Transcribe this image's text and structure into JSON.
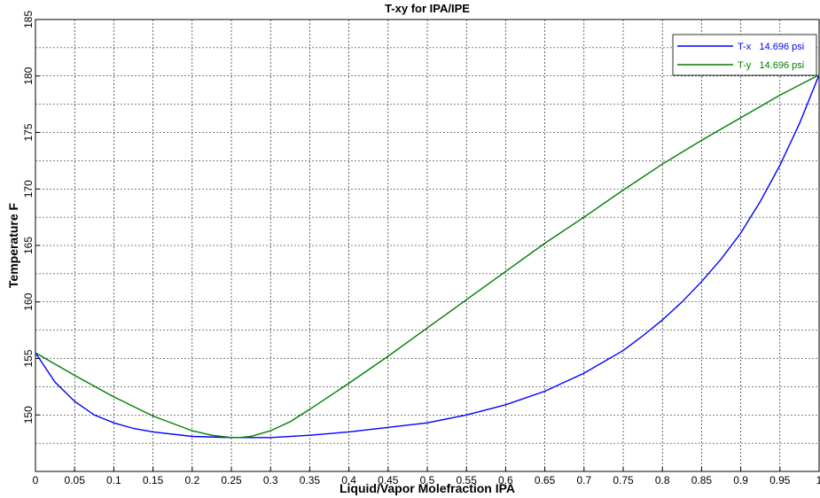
{
  "chart_data": {
    "type": "line",
    "title": "T-xy for IPA/IPE",
    "xlabel": "Liquid/Vapor Molefraction IPA",
    "ylabel": "Temperature  F",
    "xlim": [
      0,
      1
    ],
    "ylim": [
      145,
      185
    ],
    "grid": true,
    "legend_position": "top-right",
    "x_ticks": [
      "0",
      "0.05",
      "0.1",
      "0.15",
      "0.2",
      "0.25",
      "0.3",
      "0.35",
      "0.4",
      "0.45",
      "0.5",
      "0.55",
      "0.6",
      "0.65",
      "0.7",
      "0.75",
      "0.8",
      "0.85",
      "0.9",
      "0.95",
      "1"
    ],
    "y_ticks": [
      "150",
      "155",
      "160",
      "165",
      "170",
      "175",
      "180",
      "185"
    ],
    "series": [
      {
        "name": "T-x   14.696 psi",
        "color": "#0000ff",
        "x": [
          0,
          0.025,
          0.05,
          0.075,
          0.1,
          0.125,
          0.15,
          0.2,
          0.25,
          0.3,
          0.35,
          0.4,
          0.45,
          0.5,
          0.55,
          0.6,
          0.65,
          0.7,
          0.75,
          0.775,
          0.8,
          0.825,
          0.85,
          0.875,
          0.9,
          0.925,
          0.95,
          0.975,
          1.0
        ],
        "y": [
          155.5,
          152.9,
          151.2,
          150.0,
          149.3,
          148.8,
          148.5,
          148.1,
          148.0,
          148.0,
          148.2,
          148.5,
          148.9,
          149.3,
          150.0,
          150.9,
          152.1,
          153.7,
          155.7,
          157.0,
          158.4,
          160.0,
          161.8,
          163.8,
          166.1,
          168.9,
          172.1,
          175.8,
          180.1
        ]
      },
      {
        "name": "T-y   14.696 psi",
        "color": "#007f00",
        "x": [
          0,
          0.05,
          0.1,
          0.15,
          0.2,
          0.225,
          0.25,
          0.26,
          0.275,
          0.3,
          0.325,
          0.35,
          0.4,
          0.45,
          0.5,
          0.55,
          0.6,
          0.65,
          0.7,
          0.75,
          0.8,
          0.85,
          0.9,
          0.95,
          1.0
        ],
        "y": [
          155.5,
          153.5,
          151.6,
          149.9,
          148.6,
          148.2,
          148.0,
          148.0,
          148.1,
          148.6,
          149.4,
          150.5,
          152.8,
          155.2,
          157.7,
          160.2,
          162.7,
          165.2,
          167.5,
          169.9,
          172.2,
          174.3,
          176.3,
          178.3,
          180.1
        ]
      }
    ]
  }
}
